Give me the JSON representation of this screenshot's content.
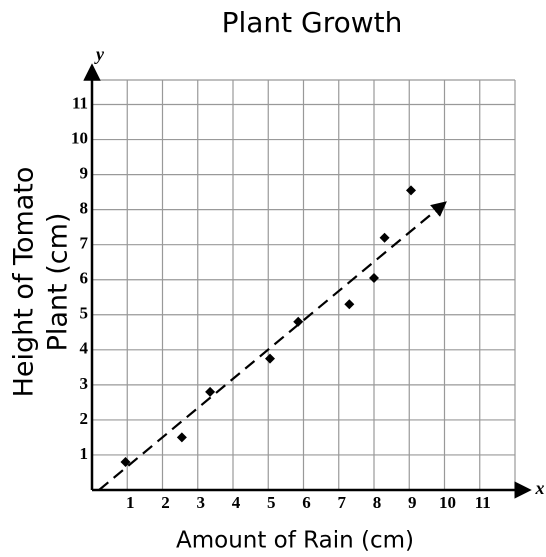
{
  "chart_data": {
    "type": "scatter",
    "title": "Plant Growth",
    "xlabel": "Amount of Rain (cm)",
    "ylabel": [
      "Height of Tomato",
      "Plant  (cm)"
    ],
    "x_axis_name": "x",
    "y_axis_name": "y",
    "series": [
      {
        "x": [
          0.95,
          2.55,
          3.35,
          5.05,
          5.85,
          7.3,
          8.0,
          8.3,
          9.05
        ],
        "values": [
          0.8,
          1.5,
          2.8,
          3.75,
          4.8,
          5.3,
          6.05,
          7.2,
          8.55
        ],
        "color": "#000000"
      }
    ],
    "trend_line": {
      "x": [
        0.2,
        9.9
      ],
      "values": [
        0,
        8.1
      ],
      "color": "#000000"
    },
    "xlim": [
      0,
      12
    ],
    "ylim": [
      0,
      11.7
    ],
    "xticks": [
      1,
      2,
      3,
      4,
      5,
      6,
      7,
      8,
      9,
      10,
      11
    ],
    "yticks": [
      1,
      2,
      3,
      4,
      5,
      6,
      7,
      8,
      9,
      10,
      11
    ],
    "grid": true
  }
}
